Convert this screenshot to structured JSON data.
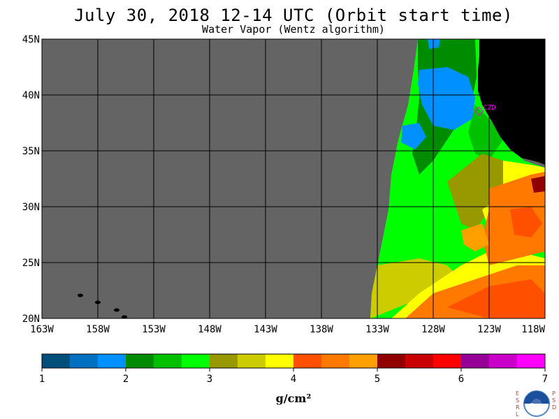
{
  "header": {
    "title": "July 30, 2018  12-14 UTC  (Orbit start time)",
    "subtitle": "Water Vapor (Wentz algorithm)"
  },
  "map": {
    "lon_range": [
      -163,
      -118
    ],
    "lat_range": [
      20,
      45
    ],
    "lat_labels": [
      "20N",
      "25N",
      "30N",
      "35N",
      "40N",
      "45N"
    ],
    "lon_labels": [
      "163W",
      "158W",
      "153W",
      "148W",
      "143W",
      "138W",
      "133W",
      "128W",
      "123W",
      "118W"
    ],
    "station_label": "CZD",
    "colors": {
      "nodata": "#646464",
      "land": "#000000",
      "grid": "#000000",
      "station": "#ff00ff"
    }
  },
  "colorbar": {
    "min": 1,
    "max": 7,
    "tick_labels": [
      "1",
      "2",
      "3",
      "4",
      "5",
      "6",
      "7"
    ],
    "colors": [
      "#004e7a",
      "#0070c0",
      "#0090ff",
      "#008c00",
      "#00c000",
      "#00ff00",
      "#989800",
      "#cccc00",
      "#ffff00",
      "#ff5000",
      "#ff7800",
      "#ffa000",
      "#900000",
      "#c80000",
      "#ff0000",
      "#960096",
      "#c800c8",
      "#ff00ff"
    ],
    "units": "g/cm²"
  },
  "logo": {
    "left_text": "ESRL",
    "right_text": "PSD",
    "center": "NOAA"
  }
}
